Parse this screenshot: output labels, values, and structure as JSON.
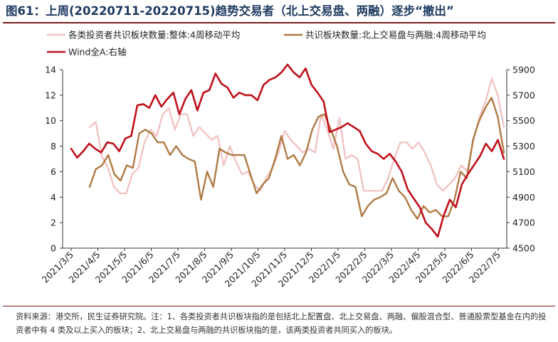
{
  "title": "图61：上周(20220711-20220715)趋势交易者（北上交易盘、两融）逐步“撤出”",
  "source": "资料来源：港交所，民生证券研究院。注：1、各类投资者共识板块指的是包括北上配置盘、北上交易盘、两融、偏股混合型、普通股票型基金在内的投资者中有 4 类及以上买入的板块；2、北上交易盘与两融的共识板块指的是，该两类投资者共同买入的板块。",
  "colors": {
    "pink": "#f2c4c4",
    "brown": "#b07a45",
    "red": "#c0101a",
    "title": "#1e3a5f",
    "rule": "#7a1f1f"
  },
  "chart_data": {
    "type": "line",
    "x_labels": [
      "2021/3/5",
      "2021/4/5",
      "2021/5/5",
      "2021/6/5",
      "2021/7/5",
      "2021/8/5",
      "2021/9/5",
      "2021/10/5",
      "2021/11/5",
      "2021/12/5",
      "2022/1/5",
      "2022/2/5",
      "2022/3/5",
      "2022/4/5",
      "2022/5/5",
      "2022/6/5",
      "2022/7/5"
    ],
    "y_left": {
      "ticks": [
        "0",
        "2",
        "4",
        "6",
        "8",
        "10",
        "12",
        "14"
      ],
      "lim": [
        0,
        14
      ]
    },
    "y_right": {
      "ticks": [
        "4500",
        "4700",
        "4900",
        "5100",
        "5300",
        "5500",
        "5700",
        "5900"
      ],
      "lim": [
        4500,
        5900
      ]
    },
    "legend": [
      {
        "name": "各类投资者共识板块数量:整体:4周移动平均",
        "color": "#f2c4c4"
      },
      {
        "name": "共识板块数量:北上交易盘与两融:4周移动平均",
        "color": "#b07a45"
      },
      {
        "name": "Wind全A:右轴",
        "color": "#c0101a"
      }
    ],
    "series": [
      {
        "name": "各类投资者共识板块数量:整体:4周移动平均",
        "axis": "left",
        "values": [
          9.5,
          9.9,
          7.2,
          6.3,
          4.8,
          4.3,
          4.3,
          5.8,
          6.3,
          8.3,
          9.3,
          8.8,
          10.5,
          11.0,
          9.3,
          10.5,
          10.5,
          8.8,
          9.5,
          9.0,
          8.5,
          8.8,
          6.5,
          8.0,
          6.8,
          5.8,
          6.0,
          5.0,
          4.5,
          5.5,
          6.3,
          7.5,
          9.2,
          8.5,
          8.0,
          7.5,
          7.8,
          7.5,
          10.5,
          9.3,
          7.8,
          10.2,
          7.0,
          7.3,
          7.0,
          4.5,
          4.5,
          4.5,
          4.5,
          5.5,
          7.0,
          8.3,
          8.3,
          7.8,
          8.3,
          7.5,
          6.5,
          5.0,
          4.5,
          5.0,
          5.5,
          6.5,
          6.0,
          8.5,
          10.3,
          11.5,
          13.3,
          12.0,
          9.5
        ]
      },
      {
        "name": "共识板块数量:北上交易盘与两融:4周移动平均",
        "axis": "left",
        "values": [
          4.8,
          6.2,
          6.5,
          7.3,
          5.8,
          5.3,
          6.5,
          6.3,
          9.0,
          9.3,
          9.0,
          8.3,
          8.3,
          7.3,
          8.0,
          7.3,
          7.0,
          6.8,
          3.8,
          6.0,
          4.8,
          7.8,
          7.5,
          7.3,
          7.3,
          7.3,
          5.8,
          4.3,
          5.0,
          5.5,
          7.0,
          8.8,
          7.0,
          7.3,
          6.5,
          7.5,
          9.3,
          10.3,
          10.5,
          9.3,
          8.0,
          6.0,
          5.0,
          4.8,
          2.5,
          3.3,
          3.8,
          4.0,
          4.3,
          5.5,
          4.5,
          4.0,
          3.0,
          2.3,
          3.3,
          2.8,
          3.0,
          2.5,
          2.5,
          3.8,
          6.0,
          5.5,
          8.5,
          10.0,
          11.0,
          11.8,
          10.3,
          7.5
        ]
      },
      {
        "name": "Wind全A:右轴",
        "axis": "right",
        "values": [
          5280,
          5210,
          5260,
          5320,
          5280,
          5250,
          5330,
          5320,
          5260,
          5360,
          5380,
          5620,
          5630,
          5600,
          5700,
          5610,
          5670,
          5720,
          5550,
          5670,
          5740,
          5580,
          5720,
          5740,
          5870,
          5790,
          5760,
          5680,
          5720,
          5700,
          5700,
          5660,
          5780,
          5820,
          5840,
          5880,
          5940,
          5880,
          5840,
          5910,
          5780,
          5720,
          5650,
          5410,
          5430,
          5450,
          5480,
          5450,
          5420,
          5320,
          5260,
          5240,
          5200,
          5240,
          5180,
          5100,
          4960,
          4890,
          4820,
          4700,
          4650,
          4590,
          4760,
          4880,
          4820,
          5000,
          5080,
          5150,
          5220,
          5320,
          5260,
          5350,
          5200
        ]
      }
    ]
  }
}
